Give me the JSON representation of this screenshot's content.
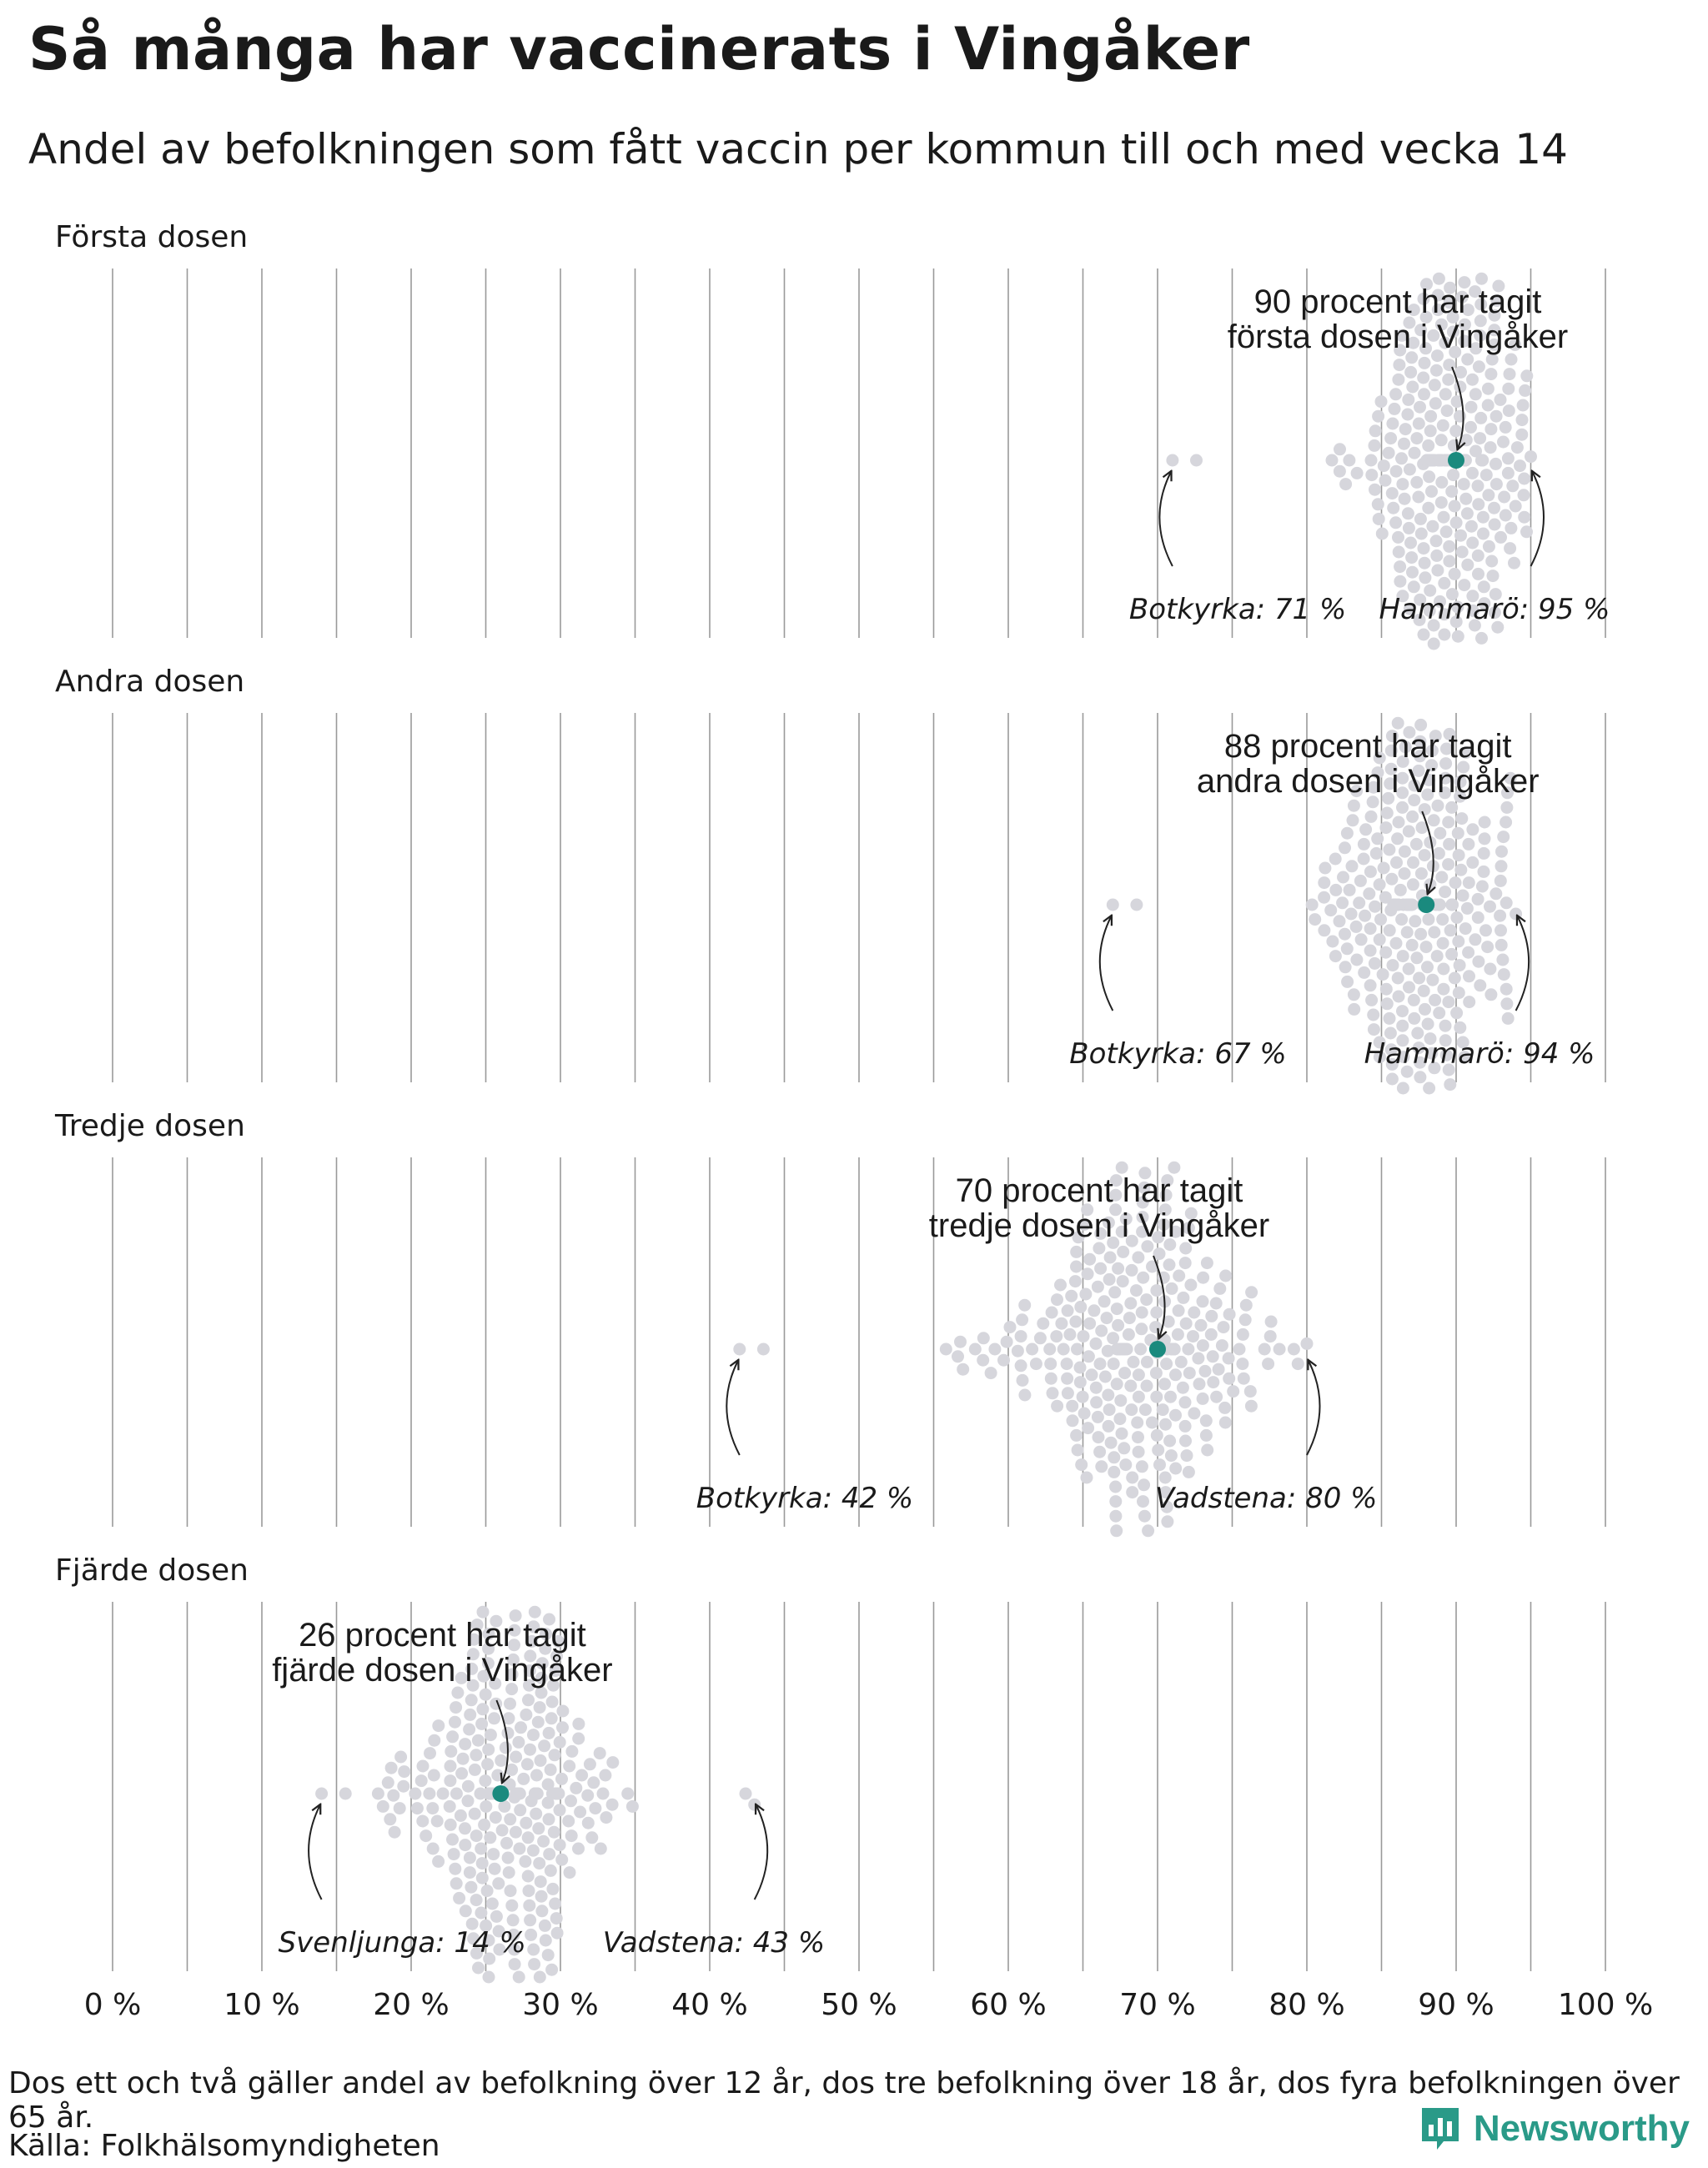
{
  "title": "Så många har vaccinerats i Vingåker",
  "subtitle": "Andel av befolkningen som fått vaccin per kommun till och med vecka 14",
  "footnote": "Dos ett och två gäller andel av befolkning över 12 år, dos tre befolkning över 18 år, dos fyra befolkningen över 65 år.",
  "source": "Källa: Folkhälsomyndigheten",
  "logo": {
    "text": "Newsworthy",
    "icon": "newsworthy-logo-icon"
  },
  "colors": {
    "dots": "#d6d6dc",
    "highlight": "#1a8a7e",
    "grid": "#9a9a9a",
    "text": "#1a1a1a",
    "brand": "#2a9a88"
  },
  "chart_data": {
    "type": "scatter",
    "subtype": "beeswarm",
    "x_axis": {
      "min": 0,
      "max": 100,
      "ticks": [
        0,
        10,
        20,
        30,
        40,
        50,
        60,
        70,
        80,
        90,
        100
      ],
      "tick_labels": [
        "0 %",
        "10 %",
        "20 %",
        "30 %",
        "40 %",
        "50 %",
        "60 %",
        "70 %",
        "80 %",
        "90 %",
        "100 %"
      ],
      "minor_ticks": [
        5,
        15,
        25,
        35,
        45,
        55,
        65,
        75,
        85,
        95
      ]
    },
    "grid": true,
    "panels": [
      {
        "label": "Första dosen",
        "highlight": {
          "value": 90,
          "annotation": [
            "90 procent har tagit",
            "första dosen i Vingåker"
          ]
        },
        "min": {
          "name": "Botkyrka",
          "value": 71,
          "label": "Botkyrka: 71 %"
        },
        "max": {
          "name": "Hammarö",
          "value": 95,
          "label": "Hammarö: 95 %"
        },
        "distribution_center": 89.5,
        "n_municipalities": 290
      },
      {
        "label": "Andra dosen",
        "highlight": {
          "value": 88,
          "annotation": [
            "88 procent har tagit",
            "andra dosen i Vingåker"
          ]
        },
        "min": {
          "name": "Botkyrka",
          "value": 67,
          "label": "Botkyrka: 67 %"
        },
        "max": {
          "name": "Hammarö",
          "value": 94,
          "label": "Hammarö: 94 %"
        },
        "distribution_center": 87.5,
        "n_municipalities": 290
      },
      {
        "label": "Tredje dosen",
        "highlight": {
          "value": 70,
          "annotation": [
            "70 procent har tagit",
            "tredje dosen i Vingåker"
          ]
        },
        "min": {
          "name": "Botkyrka",
          "value": 42,
          "label": "Botkyrka: 42 %"
        },
        "max": {
          "name": "Vadstena",
          "value": 80,
          "label": "Vadstena: 80 %"
        },
        "distribution_center": 68.5,
        "n_municipalities": 290
      },
      {
        "label": "Fjärde dosen",
        "highlight": {
          "value": 26,
          "annotation": [
            "26 procent har tagit",
            "fjärde dosen i Vingåker"
          ]
        },
        "min": {
          "name": "Svenljunga",
          "value": 14,
          "label": "Svenljunga: 14 %"
        },
        "max": {
          "name": "Vadstena",
          "value": 43,
          "label": "Vadstena: 43 %"
        },
        "distribution_center": 26.5,
        "n_municipalities": 290
      }
    ]
  }
}
